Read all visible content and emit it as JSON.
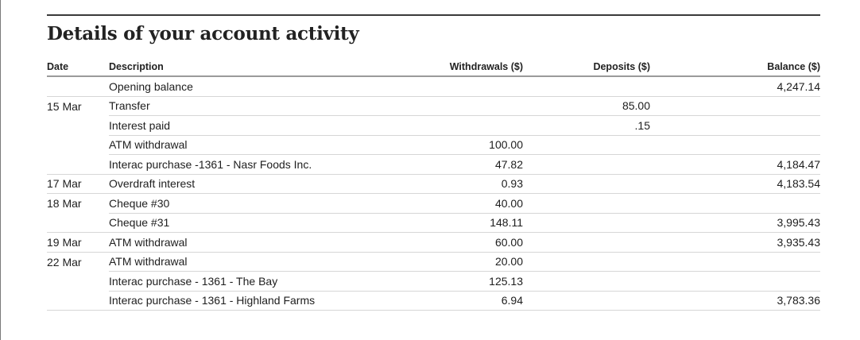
{
  "title": "Details of your account activity",
  "columns": {
    "date": "Date",
    "description": "Description",
    "withdrawals": "Withdrawals ($)",
    "deposits": "Deposits ($)",
    "balance": "Balance ($)"
  },
  "rows": [
    {
      "date": "",
      "description": "Opening balance",
      "withdrawal": "",
      "deposit": "",
      "balance": "4,247.14"
    },
    {
      "date": "15 Mar",
      "description": "Transfer",
      "withdrawal": "",
      "deposit": "85.00",
      "balance": ""
    },
    {
      "date": "",
      "description": "Interest paid",
      "withdrawal": "",
      "deposit": ".15",
      "balance": ""
    },
    {
      "date": "",
      "description": "ATM withdrawal",
      "withdrawal": "100.00",
      "deposit": "",
      "balance": ""
    },
    {
      "date": "",
      "description": "Interac purchase -1361 - Nasr Foods Inc.",
      "withdrawal": "47.82",
      "deposit": "",
      "balance": "4,184.47"
    },
    {
      "date": "17 Mar",
      "description": "Overdraft interest",
      "withdrawal": "0.93",
      "deposit": "",
      "balance": "4,183.54"
    },
    {
      "date": "18 Mar",
      "description": "Cheque #30",
      "withdrawal": "40.00",
      "deposit": "",
      "balance": ""
    },
    {
      "date": "",
      "description": "Cheque #31",
      "withdrawal": "148.11",
      "deposit": "",
      "balance": "3,995.43"
    },
    {
      "date": "19 Mar",
      "description": "ATM withdrawal",
      "withdrawal": "60.00",
      "deposit": "",
      "balance": "3,935.43"
    },
    {
      "date": "22 Mar",
      "description": "ATM withdrawal",
      "withdrawal": "20.00",
      "deposit": "",
      "balance": ""
    },
    {
      "date": "",
      "description": "Interac purchase - 1361 - The Bay",
      "withdrawal": "125.13",
      "deposit": "",
      "balance": ""
    },
    {
      "date": "",
      "description": "Interac purchase - 1361 - Highland Farms",
      "withdrawal": "6.94",
      "deposit": "",
      "balance": "3,783.36"
    }
  ]
}
